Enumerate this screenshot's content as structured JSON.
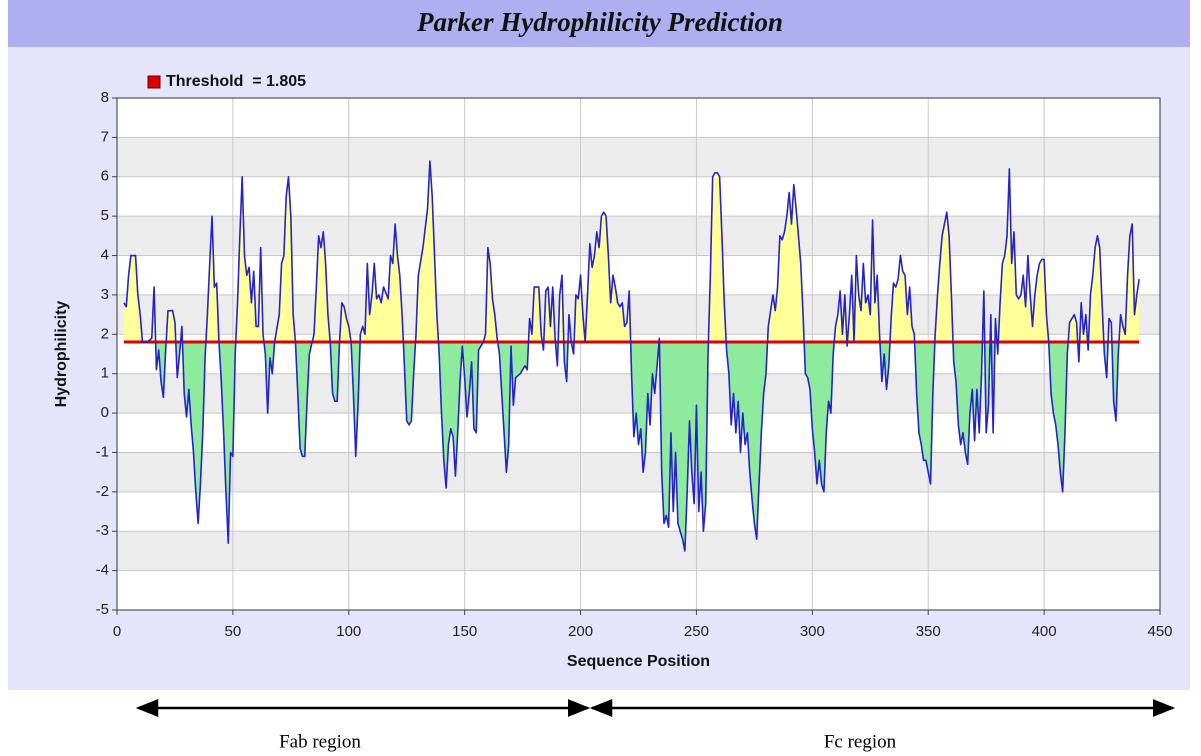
{
  "chart_data": {
    "type": "line",
    "title": "Parker Hydrophilicity Prediction",
    "xlabel": "Sequence Position",
    "ylabel": "Hydrophilicity",
    "threshold": {
      "value": 1.805,
      "label": "Threshold  = 1.805",
      "color": "#dd0000"
    },
    "legend": "top-left",
    "color": "#2424c8",
    "fill_above": "#ffff99",
    "fill_below": "#8eeb9e",
    "grid": true,
    "xlim": [
      0,
      450
    ],
    "ylim": [
      -5,
      8
    ],
    "xticks": [
      0,
      50,
      100,
      150,
      200,
      250,
      300,
      350,
      400,
      450
    ],
    "yticks": [
      -5,
      -4,
      -3,
      -2,
      -1,
      0,
      1,
      2,
      3,
      4,
      5,
      6,
      7,
      8
    ],
    "annotations": [
      {
        "text": "Fab region"
      },
      {
        "text": "Fc region"
      }
    ],
    "x": [
      3,
      4,
      5,
      6,
      8,
      9,
      10,
      11,
      13,
      15,
      16,
      17,
      18,
      19,
      20,
      21,
      22,
      24,
      25,
      26,
      27,
      28,
      29,
      30,
      31,
      32,
      33,
      34,
      35,
      36,
      37,
      38,
      39,
      40,
      41,
      42,
      43,
      44,
      45,
      46,
      47,
      48,
      49,
      50,
      51,
      52,
      53,
      54,
      55,
      56,
      57,
      58,
      59,
      60,
      61,
      62,
      63,
      64,
      65,
      66,
      67,
      68,
      70,
      71,
      72,
      73,
      74,
      75,
      76,
      77,
      78,
      79,
      80,
      81,
      82,
      83,
      85,
      86,
      87,
      88,
      89,
      90,
      91,
      92,
      93,
      94,
      95,
      96,
      97,
      98,
      99,
      100,
      101,
      102,
      103,
      104,
      105,
      106,
      107,
      108,
      109,
      110,
      111,
      112,
      113,
      114,
      115,
      117,
      118,
      119,
      120,
      121,
      122,
      123,
      124,
      125,
      126,
      127,
      128,
      129,
      130,
      132,
      134,
      135,
      136,
      137,
      138,
      139,
      140,
      141,
      142,
      143,
      144,
      145,
      146,
      147,
      148,
      149,
      150,
      151,
      152,
      153,
      154,
      155,
      156,
      157,
      158,
      159,
      160,
      161,
      162,
      163,
      164,
      165,
      166,
      167,
      168,
      169,
      170,
      171,
      172,
      174,
      176,
      177,
      178,
      179,
      180,
      182,
      183,
      184,
      185,
      186,
      187,
      188,
      189,
      190,
      191,
      192,
      193,
      194,
      195,
      196,
      197,
      198,
      199,
      200,
      201,
      202,
      203,
      204,
      205,
      206,
      207,
      208,
      209,
      210,
      211,
      212,
      213,
      214,
      215,
      216,
      217,
      218,
      219,
      220,
      221,
      222,
      223,
      224,
      225,
      226,
      227,
      228,
      229,
      230,
      231,
      232,
      233,
      234,
      235,
      236,
      237,
      238,
      239,
      240,
      241,
      242,
      243,
      244,
      245,
      246,
      247,
      248,
      249,
      250,
      251,
      252,
      253,
      254,
      255,
      256,
      257,
      258,
      259,
      260,
      261,
      262,
      263,
      264,
      265,
      266,
      267,
      268,
      269,
      270,
      271,
      272,
      273,
      274,
      275,
      276,
      277,
      278,
      279,
      280,
      281,
      282,
      283,
      284,
      285,
      286,
      287,
      288,
      289,
      290,
      291,
      292,
      293,
      294,
      295,
      296,
      297,
      298,
      299,
      300,
      301,
      302,
      303,
      304,
      305,
      306,
      307,
      308,
      309,
      310,
      311,
      312,
      313,
      314,
      315,
      316,
      317,
      318,
      319,
      320,
      321,
      322,
      323,
      324,
      325,
      326,
      327,
      328,
      329,
      330,
      331,
      332,
      333,
      334,
      335,
      336,
      337,
      338,
      339,
      340,
      341,
      342,
      343,
      344,
      345,
      346,
      347,
      348,
      349,
      350,
      351,
      352,
      353,
      354,
      355,
      356,
      357,
      358,
      359,
      360,
      361,
      362,
      363,
      364,
      365,
      366,
      367,
      368,
      369,
      370,
      371,
      372,
      373,
      374,
      375,
      376,
      377,
      378,
      379,
      380,
      381,
      382,
      383,
      384,
      385,
      386,
      387,
      388,
      389,
      390,
      391,
      392,
      393,
      394,
      395,
      396,
      397,
      398,
      399,
      400,
      401,
      402,
      403,
      404,
      405,
      406,
      407,
      408,
      409,
      410,
      411,
      412,
      413,
      414,
      415,
      416,
      417,
      418,
      419,
      420,
      421,
      422,
      423,
      424,
      425,
      426,
      427,
      428,
      429,
      430,
      431,
      432,
      433,
      434,
      435,
      436,
      437,
      438,
      439,
      440,
      441
    ],
    "values": [
      2.8,
      2.7,
      3.5,
      4.0,
      4.0,
      3.0,
      2.5,
      1.8,
      1.8,
      1.9,
      3.2,
      1.1,
      1.6,
      0.8,
      0.4,
      1.6,
      2.6,
      2.6,
      2.3,
      0.9,
      1.5,
      2.2,
      0.5,
      -0.1,
      0.6,
      -0.3,
      -1.0,
      -2.0,
      -2.8,
      -1.8,
      -0.5,
      1.4,
      2.5,
      3.8,
      5.0,
      3.2,
      3.3,
      1.8,
      0.8,
      -0.5,
      -2.0,
      -3.3,
      -1.0,
      -1.1,
      1.5,
      2.8,
      4.5,
      6.0,
      4.0,
      3.5,
      3.7,
      2.8,
      3.6,
      2.2,
      2.2,
      4.2,
      2.0,
      1.5,
      0.0,
      1.4,
      1.0,
      1.8,
      2.5,
      3.8,
      4.0,
      5.5,
      6.0,
      5.0,
      2.5,
      1.8,
      0.5,
      -0.9,
      -1.1,
      -1.1,
      0.3,
      1.5,
      2.0,
      3.2,
      4.5,
      4.2,
      4.6,
      3.8,
      2.5,
      1.8,
      0.5,
      0.3,
      0.3,
      1.8,
      2.8,
      2.7,
      2.4,
      2.2,
      1.8,
      0.5,
      -1.1,
      0.2,
      2.0,
      2.2,
      2.0,
      3.8,
      2.5,
      3.0,
      3.8,
      2.9,
      3.0,
      2.8,
      3.2,
      2.9,
      4.0,
      3.8,
      4.8,
      4.0,
      3.5,
      2.5,
      1.2,
      -0.2,
      -0.3,
      -0.2,
      1.0,
      2.0,
      3.5,
      4.2,
      5.2,
      6.4,
      5.5,
      4.0,
      2.5,
      1.5,
      0.0,
      -1.2,
      -1.9,
      -0.8,
      -0.4,
      -0.6,
      -1.6,
      -0.5,
      0.8,
      1.7,
      0.9,
      -0.1,
      0.5,
      1.3,
      -0.4,
      -0.5,
      1.6,
      1.7,
      1.8,
      2.0,
      4.2,
      3.8,
      2.9,
      2.5,
      1.9,
      1.5,
      0.5,
      -0.5,
      -1.5,
      -0.8,
      1.7,
      0.2,
      0.9,
      1.0,
      1.2,
      1.1,
      2.4,
      2.0,
      3.2,
      3.2,
      2.0,
      1.6,
      3.1,
      3.2,
      2.2,
      3.2,
      1.9,
      1.2,
      3.0,
      3.5,
      1.3,
      0.8,
      2.5,
      1.8,
      1.5,
      3.0,
      2.9,
      3.5,
      2.5,
      1.8,
      3.0,
      4.3,
      3.7,
      4.0,
      4.6,
      4.2,
      5.0,
      5.1,
      5.0,
      4.0,
      2.8,
      3.5,
      3.2,
      2.8,
      2.7,
      2.8,
      2.2,
      2.3,
      3.1,
      1.0,
      -0.6,
      0.0,
      -0.8,
      -0.4,
      -1.5,
      -1.0,
      0.5,
      -0.3,
      1.0,
      0.5,
      1.2,
      1.9,
      -1.5,
      -2.8,
      -2.6,
      -2.9,
      -0.5,
      -2.5,
      -1.0,
      -2.8,
      -3.0,
      -3.2,
      -3.5,
      -2.0,
      -0.2,
      -1.5,
      -2.3,
      0.2,
      -2.5,
      -1.5,
      -3.0,
      -2.3,
      1.5,
      3.5,
      6.0,
      6.1,
      6.1,
      6.0,
      4.5,
      2.8,
      1.6,
      1.0,
      -0.3,
      0.5,
      -0.5,
      0.3,
      -1.0,
      0.0,
      -0.8,
      -0.5,
      -1.5,
      -2.2,
      -2.8,
      -3.2,
      -1.8,
      -0.5,
      0.5,
      1.0,
      2.2,
      2.6,
      3.0,
      2.6,
      3.2,
      4.5,
      4.4,
      4.6,
      5.0,
      5.6,
      4.8,
      5.8,
      5.2,
      4.5,
      3.8,
      2.5,
      1.0,
      0.9,
      0.6,
      -0.4,
      -1.0,
      -1.8,
      -1.2,
      -1.8,
      -2.0,
      -0.5,
      0.3,
      0.0,
      1.5,
      2.2,
      2.5,
      3.1,
      2.0,
      3.0,
      1.7,
      2.5,
      3.5,
      1.8,
      4.0,
      3.0,
      2.6,
      3.8,
      2.8,
      3.0,
      2.5,
      4.9,
      2.8,
      3.5,
      2.0,
      0.8,
      1.5,
      0.6,
      1.2,
      2.4,
      3.3,
      3.2,
      3.4,
      4.0,
      3.6,
      3.5,
      2.5,
      3.2,
      2.2,
      2.0,
      0.5,
      -0.5,
      -0.8,
      -1.2,
      -1.2,
      -1.5,
      -1.8,
      0.5,
      2.0,
      3.0,
      3.8,
      4.5,
      4.8,
      5.1,
      4.5,
      3.0,
      1.3,
      0.8,
      -0.3,
      -0.8,
      -0.5,
      -1.0,
      -1.3,
      0.0,
      0.6,
      -0.7,
      0.6,
      -0.5,
      1.0,
      3.1,
      -0.5,
      0.2,
      2.5,
      -0.5,
      2.4,
      1.5,
      2.8,
      3.8,
      4.0,
      4.5,
      6.2,
      3.8,
      4.6,
      3.0,
      2.9,
      3.0,
      3.5,
      2.7,
      4.0,
      3.0,
      2.2,
      3.0,
      3.5,
      3.8,
      3.9,
      3.9,
      2.5,
      1.8,
      0.5,
      0.0,
      -0.3,
      -0.8,
      -1.5,
      -2.0,
      -0.5,
      1.5,
      2.3,
      2.4,
      2.5,
      2.3,
      1.3,
      2.8,
      2.0,
      2.5,
      1.6,
      3.0,
      3.5,
      4.2,
      4.5,
      4.2,
      2.8,
      1.5,
      0.9,
      2.4,
      2.3,
      0.3,
      -0.2,
      1.5,
      2.5,
      2.2,
      2.0,
      3.5,
      4.5,
      4.8,
      2.5,
      3.0,
      3.4
    ]
  }
}
